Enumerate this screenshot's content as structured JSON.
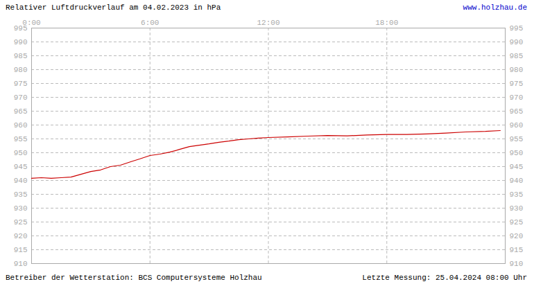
{
  "chart_data": {
    "type": "line",
    "title": "Relativer Luftdruckverlauf am 04.02.2023 in hPa",
    "source": "www.holzhau.de",
    "footer_left": "Betreiber der Wetterstation: BCS Computersysteme Holzhau",
    "footer_right": "Letzte Messung: 25.04.2024 08:00 Uhr",
    "x": [
      0,
      0.5,
      1,
      1.5,
      2,
      2.5,
      3,
      3.5,
      4,
      4.5,
      5,
      5.5,
      6,
      6.5,
      7,
      7.5,
      8,
      8.5,
      9,
      9.5,
      10,
      10.5,
      11,
      11.5,
      12,
      13,
      14,
      15,
      16,
      17,
      18,
      19,
      20,
      21,
      22,
      23,
      23.75
    ],
    "values": [
      940.8,
      941,
      940.8,
      941,
      941.2,
      942.2,
      943.2,
      943.8,
      945,
      945.5,
      946.7,
      947.8,
      949,
      949.5,
      950.2,
      951.2,
      952.2,
      952.7,
      953.2,
      953.8,
      954.2,
      954.7,
      955,
      955.3,
      955.5,
      955.7,
      956,
      956.2,
      956.1,
      956.4,
      956.6,
      956.6,
      956.8,
      957.1,
      957.5,
      957.7,
      958
    ],
    "color": "#cc0000",
    "xlim": [
      0,
      24
    ],
    "xticks": [
      {
        "value": 0,
        "label": "0:00"
      },
      {
        "value": 6,
        "label": "6:00"
      },
      {
        "value": 12,
        "label": "12:00"
      },
      {
        "value": 18,
        "label": "18:00"
      }
    ],
    "ylim": [
      910,
      995
    ],
    "yticks": [
      910,
      915,
      920,
      925,
      930,
      935,
      940,
      945,
      950,
      955,
      960,
      965,
      970,
      975,
      980,
      985,
      990,
      995
    ],
    "grid": true
  }
}
